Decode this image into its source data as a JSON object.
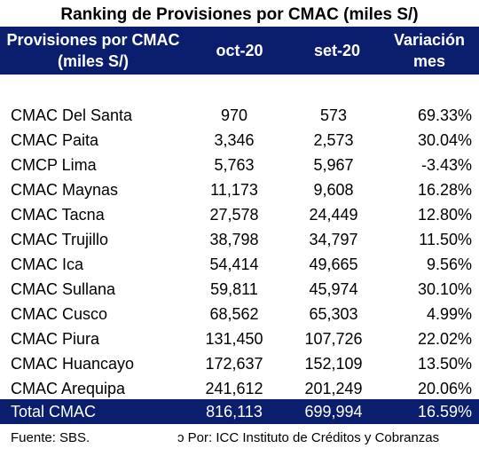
{
  "title": "Ranking de Provisiones por CMAC (miles S/)",
  "header": {
    "col1_line1": "Provisiones por CMAC",
    "col1_line2": "(miles S/)",
    "col2": "oct-20",
    "col3": "set-20",
    "col4_line1": "Variación",
    "col4_line2": "mes"
  },
  "rows": [
    {
      "name": "CMAC Del Santa",
      "oct": "970",
      "set": "573",
      "var": "69.33%"
    },
    {
      "name": "CMAC Paita",
      "oct": "3,346",
      "set": "2,573",
      "var": "30.04%"
    },
    {
      "name": "CMCP Lima",
      "oct": "5,763",
      "set": "5,967",
      "var": "-3.43%"
    },
    {
      "name": "CMAC Maynas",
      "oct": "11,173",
      "set": "9,608",
      "var": "16.28%"
    },
    {
      "name": "CMAC Tacna",
      "oct": "27,578",
      "set": "24,449",
      "var": "12.80%"
    },
    {
      "name": "CMAC Trujillo",
      "oct": "38,798",
      "set": "34,797",
      "var": "11.50%"
    },
    {
      "name": "CMAC Ica",
      "oct": "54,414",
      "set": "49,665",
      "var": "9.56%"
    },
    {
      "name": "CMAC Sullana",
      "oct": "59,811",
      "set": "45,974",
      "var": "30.10%"
    },
    {
      "name": "CMAC Cusco",
      "oct": "68,562",
      "set": "65,303",
      "var": "4.99%"
    },
    {
      "name": "CMAC Piura",
      "oct": "131,450",
      "set": "107,726",
      "var": "22.02%"
    },
    {
      "name": "CMAC Huancayo",
      "oct": "172,637",
      "set": "152,109",
      "var": "13.50%"
    },
    {
      "name": "CMAC Arequipa",
      "oct": "241,612",
      "set": "201,249",
      "var": "20.06%"
    }
  ],
  "total": {
    "name": "Total CMAC",
    "oct": "816,113",
    "set": "699,994",
    "var": "16.59%"
  },
  "footer": {
    "source": "Fuente: SBS.",
    "credit": "ɔ Por: ICC Instituto de Créditos y Cobranzas"
  },
  "colors": {
    "header_bg": "#0b1e6e",
    "header_text": "#ffffff"
  }
}
